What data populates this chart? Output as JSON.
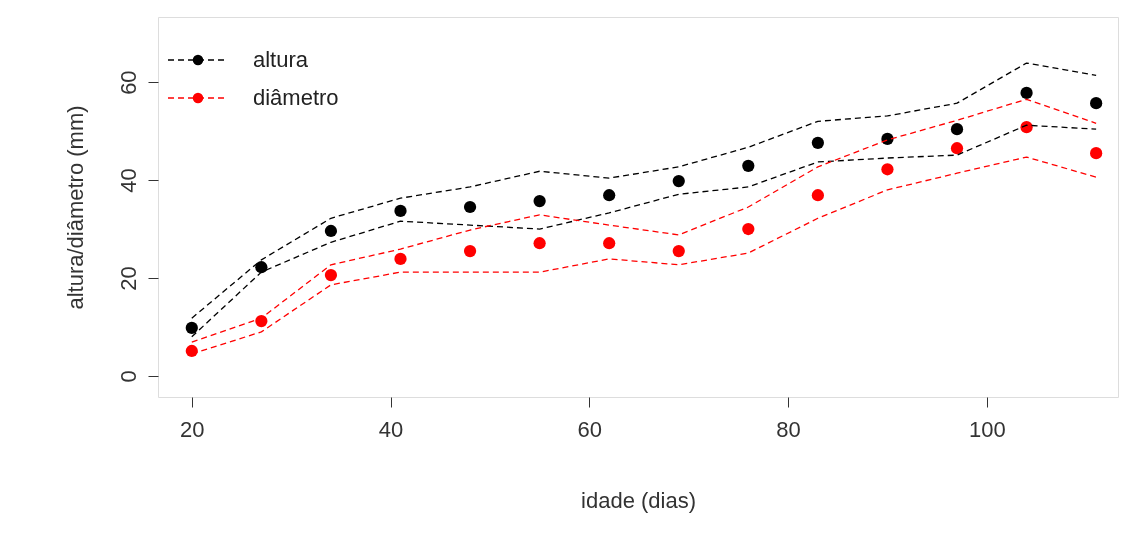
{
  "chart_data": {
    "type": "scatter",
    "xlabel": "idade (dias)",
    "ylabel": "altura/diâmetro (mm)",
    "x": [
      20,
      27,
      34,
      41,
      48,
      55,
      62,
      69,
      76,
      83,
      90,
      97,
      104,
      111
    ],
    "series": [
      {
        "name": "altura",
        "color": "#000000",
        "values": [
          9.8,
          22.2,
          29.6,
          33.7,
          34.5,
          35.7,
          36.9,
          39.8,
          42.9,
          47.6,
          48.4,
          50.4,
          57.8,
          55.7
        ]
      },
      {
        "name": "diâmetro",
        "color": "#ff0000",
        "values": [
          5.1,
          11.2,
          20.6,
          23.9,
          25.5,
          27.1,
          27.1,
          25.5,
          30.0,
          36.9,
          42.2,
          46.5,
          50.8,
          45.5
        ]
      },
      {
        "type": "line",
        "marker": "none",
        "color": "#000000",
        "values": [
          8.0,
          21.2,
          27.3,
          31.6,
          30.8,
          30.0,
          33.3,
          37.1,
          38.6,
          43.7,
          44.5,
          45.1,
          51.2,
          50.4
        ]
      },
      {
        "type": "line",
        "marker": "none",
        "color": "#000000",
        "values": [
          11.8,
          23.7,
          32.2,
          36.3,
          38.6,
          41.8,
          40.4,
          42.7,
          46.7,
          52.0,
          53.1,
          55.7,
          63.9,
          61.4
        ]
      },
      {
        "type": "line",
        "marker": "none",
        "color": "#ff0000",
        "values": [
          4.5,
          9.0,
          18.6,
          21.2,
          21.2,
          21.2,
          23.9,
          22.7,
          25.1,
          32.2,
          38.0,
          41.4,
          44.7,
          40.6
        ]
      },
      {
        "type": "line",
        "marker": "none",
        "color": "#ff0000",
        "values": [
          6.9,
          11.8,
          22.7,
          25.9,
          29.8,
          32.9,
          30.8,
          28.8,
          34.5,
          42.7,
          48.2,
          52.2,
          56.5,
          51.6
        ]
      }
    ],
    "xlim": [
      16.6,
      113.2
    ],
    "ylim": [
      -4.3,
      73.3
    ],
    "xticks": [
      20,
      40,
      60,
      80,
      100
    ],
    "yticks": [
      0,
      20,
      40,
      60
    ],
    "grid": false,
    "legend": "top left",
    "marker": "circle",
    "line_style": "dashed"
  }
}
